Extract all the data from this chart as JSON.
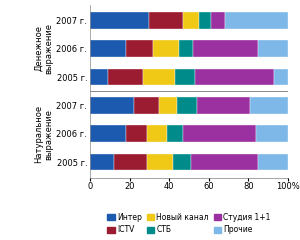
{
  "groups": [
    {
      "label": "2007 г.",
      "group": "Денежное",
      "Inter": 30,
      "ICTV": 17,
      "Novy": 8,
      "STB": 6,
      "Studio": 7,
      "Prochie": 32
    },
    {
      "label": "2006 г.",
      "group": "Денежное",
      "Inter": 18,
      "ICTV": 14,
      "Novy": 13,
      "STB": 7,
      "Studio": 33,
      "Prochie": 15
    },
    {
      "label": "2005 г.",
      "group": "Денежное",
      "Inter": 9,
      "ICTV": 18,
      "Novy": 16,
      "STB": 10,
      "Studio": 40,
      "Prochie": 7
    },
    {
      "label": "2007 г.",
      "group": "Натуральное",
      "Inter": 22,
      "ICTV": 13,
      "Novy": 9,
      "STB": 10,
      "Studio": 27,
      "Prochie": 19
    },
    {
      "label": "2006 г.",
      "group": "Натуральное",
      "Inter": 18,
      "ICTV": 11,
      "Novy": 10,
      "STB": 8,
      "Studio": 37,
      "Prochie": 16
    },
    {
      "label": "2005 г.",
      "group": "Натуральное",
      "Inter": 12,
      "ICTV": 17,
      "Novy": 13,
      "STB": 9,
      "Studio": 34,
      "Prochie": 15
    }
  ],
  "colors": {
    "Inter": "#1B5AAE",
    "ICTV": "#9B1B30",
    "Novy": "#F0C816",
    "STB": "#008B8B",
    "Studio": "#9B30A0",
    "Prochie": "#7DB8E8"
  },
  "legend_labels": {
    "Inter": "Интер",
    "ICTV": "ICTV",
    "Novy": "Новый канал",
    "STB": "СТБ",
    "Studio": "Студия 1+1",
    "Prochie": "Прочие"
  },
  "group_label_top": "Денежное\nвыражение",
  "group_label_bot": "Натуральное\nвыражение",
  "xticks": [
    0,
    20,
    40,
    60,
    80,
    100
  ],
  "bar_height": 0.58,
  "background_color": "#FFFFFF"
}
